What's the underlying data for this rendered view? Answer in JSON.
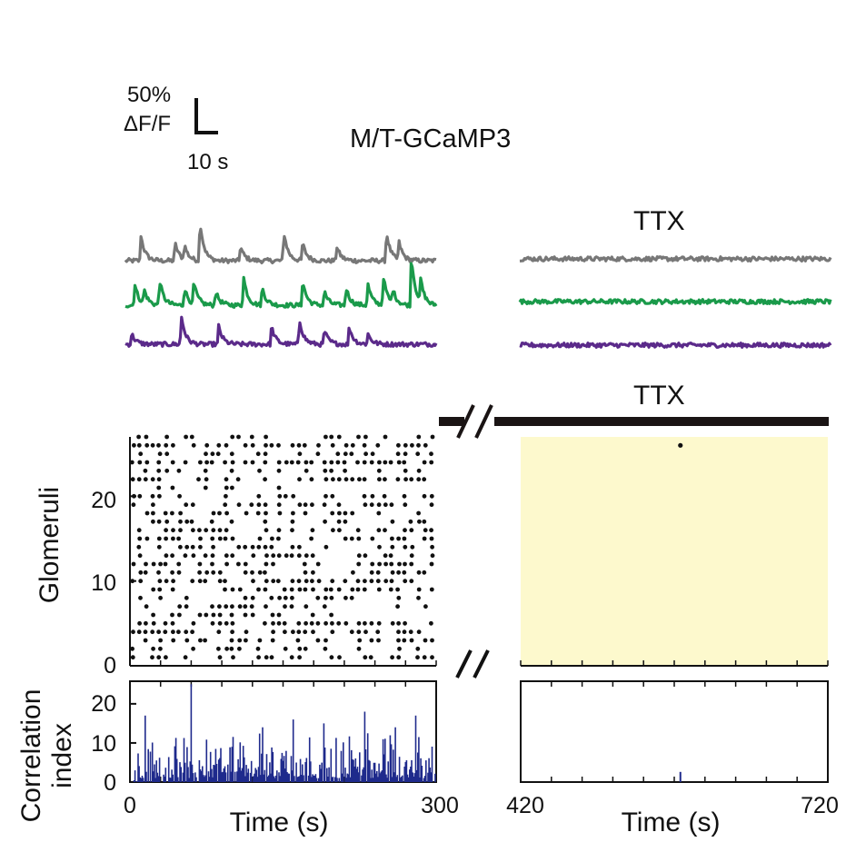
{
  "figure": {
    "title": "M/T-GCaMP3",
    "scale_bar": {
      "y_value": "50%",
      "y_unit": "ΔF/F",
      "x_value": "10 s"
    },
    "ttx_label_traces": "TTX",
    "ttx_label_bar": "TTX"
  },
  "colors": {
    "trace_gray": "#777777",
    "trace_green": "#1a9a4a",
    "trace_purple": "#5b2a8a",
    "raster_dots": "#111111",
    "ttx_shade": "#fdf9cd",
    "correlation_bars": "#1f2a8c",
    "ttx_bar": "#1a1414"
  },
  "chart_data": [
    {
      "type": "line",
      "panel": "calcium-traces-control",
      "series": [
        {
          "color": "gray",
          "baseline": 0.0,
          "peaks": [
            [
              5,
              0.7
            ],
            [
              16,
              0.5
            ],
            [
              19,
              0.4
            ],
            [
              24,
              1.1
            ],
            [
              37,
              0.4
            ],
            [
              51,
              0.8
            ],
            [
              57,
              0.5
            ],
            [
              68,
              0.4
            ],
            [
              84,
              0.8
            ],
            [
              88,
              0.5
            ]
          ]
        },
        {
          "color": "green",
          "baseline": 0.0,
          "peaks": [
            [
              3,
              0.6
            ],
            [
              6,
              0.4
            ],
            [
              11,
              0.7
            ],
            [
              19,
              0.5
            ],
            [
              22,
              0.6
            ],
            [
              29,
              0.4
            ],
            [
              38,
              0.8
            ],
            [
              44,
              0.5
            ],
            [
              57,
              0.7
            ],
            [
              64,
              0.4
            ],
            [
              71,
              0.5
            ],
            [
              78,
              0.6
            ],
            [
              83,
              0.8
            ],
            [
              86,
              0.4
            ],
            [
              92,
              1.4
            ],
            [
              95,
              0.6
            ]
          ]
        },
        {
          "color": "purple",
          "baseline": 0.0,
          "peaks": [
            [
              2,
              0.3
            ],
            [
              18,
              0.8
            ],
            [
              30,
              0.5
            ],
            [
              47,
              0.5
            ],
            [
              56,
              0.7
            ],
            [
              64,
              0.4
            ],
            [
              72,
              0.5
            ],
            [
              78,
              0.3
            ]
          ]
        }
      ]
    },
    {
      "type": "line",
      "panel": "calcium-traces-ttx",
      "series": [
        {
          "color": "gray",
          "baseline": 0.0,
          "peaks": []
        },
        {
          "color": "green",
          "baseline": 0.0,
          "peaks": []
        },
        {
          "color": "purple",
          "baseline": 0.0,
          "peaks": []
        }
      ]
    },
    {
      "type": "scatter",
      "panel": "raster",
      "ylabel": "Glomeruli",
      "ylim": [
        0,
        27
      ],
      "yticks": [
        "0",
        "10",
        "20"
      ],
      "n_glomeruli": 27,
      "control_x_range": [
        0,
        300
      ],
      "ttx_x_range": [
        420,
        720
      ],
      "ttx_events": [
        [
          576,
          26
        ]
      ]
    },
    {
      "type": "bar",
      "panel": "correlation-index",
      "ylabel_line1": "Correlation",
      "ylabel_line2": "index",
      "xlabel": "Time (s)",
      "ylim": [
        0,
        25
      ],
      "yticks": [
        "0",
        "10",
        "20"
      ],
      "xticks_left": [
        "0",
        "300"
      ],
      "xticks_right": [
        "420",
        "720"
      ],
      "control_peaks": [
        [
          15,
          17
        ],
        [
          60,
          25
        ],
        [
          100,
          9
        ],
        [
          130,
          14
        ],
        [
          160,
          16
        ],
        [
          190,
          15
        ],
        [
          230,
          18
        ],
        [
          260,
          14
        ],
        [
          280,
          17
        ],
        [
          300,
          8
        ]
      ],
      "ttx_values": [
        [
          576,
          2.6
        ]
      ]
    }
  ]
}
